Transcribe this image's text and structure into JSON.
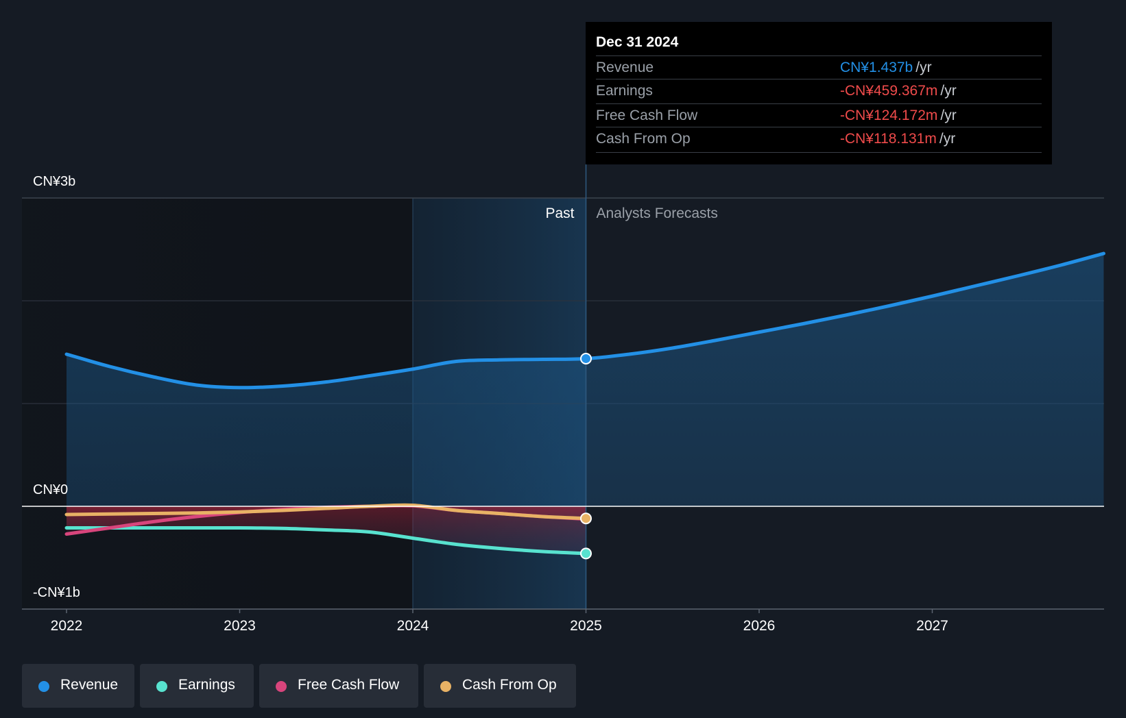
{
  "chart_data": {
    "type": "line",
    "ylim": [
      -1.0,
      3.0
    ],
    "y_ticks": [
      {
        "value": 3,
        "label": "CN¥3b"
      },
      {
        "value": 0,
        "label": "CN¥0"
      },
      {
        "value": -1,
        "label": "-CN¥1b"
      }
    ],
    "x_ticks": [
      "2022",
      "2023",
      "2024",
      "2025",
      "2026",
      "2027"
    ],
    "x_range": [
      2021.75,
      2027.99
    ],
    "past_label": "Past",
    "forecast_label": "Analysts Forecasts",
    "divider_x": 2025.0,
    "highlight_start_x": 2024.0,
    "grid": true,
    "series": [
      {
        "name": "Revenue",
        "color": "#2390e6",
        "fill": true,
        "x": [
          2022.0,
          2022.25,
          2022.5,
          2022.75,
          2023.0,
          2023.25,
          2023.5,
          2023.75,
          2024.0,
          2024.25,
          2024.5,
          2024.75,
          2025.0,
          2025.25,
          2025.5,
          2025.75,
          2026.0,
          2026.25,
          2026.5,
          2026.75,
          2027.0,
          2027.25,
          2027.5,
          2027.75,
          2027.99
        ],
        "y": [
          1.48,
          1.36,
          1.26,
          1.18,
          1.155,
          1.17,
          1.21,
          1.27,
          1.335,
          1.41,
          1.425,
          1.43,
          1.437,
          1.48,
          1.54,
          1.615,
          1.695,
          1.775,
          1.86,
          1.95,
          2.045,
          2.145,
          2.245,
          2.35,
          2.46
        ]
      },
      {
        "name": "Earnings",
        "color": "#58e2cf",
        "fill": true,
        "x": [
          2022.0,
          2022.25,
          2022.5,
          2022.75,
          2023.0,
          2023.25,
          2023.5,
          2023.75,
          2024.0,
          2024.25,
          2024.5,
          2024.75,
          2025.0
        ],
        "y": [
          -0.21,
          -0.21,
          -0.21,
          -0.21,
          -0.21,
          -0.215,
          -0.23,
          -0.25,
          -0.31,
          -0.37,
          -0.41,
          -0.44,
          -0.459
        ]
      },
      {
        "name": "Free Cash Flow",
        "color": "#d8457c",
        "fill": true,
        "x": [
          2022.0,
          2022.25,
          2022.5,
          2022.75,
          2023.0,
          2023.25,
          2023.5,
          2023.75,
          2024.0,
          2024.25,
          2024.5,
          2024.75,
          2025.0
        ],
        "y": [
          -0.27,
          -0.21,
          -0.15,
          -0.1,
          -0.06,
          -0.03,
          -0.01,
          0.0,
          0.005,
          -0.04,
          -0.07,
          -0.1,
          -0.124
        ]
      },
      {
        "name": "Cash From Op",
        "color": "#e8b265",
        "fill": false,
        "x": [
          2022.0,
          2022.25,
          2022.5,
          2022.75,
          2023.0,
          2023.25,
          2023.5,
          2023.75,
          2024.0,
          2024.25,
          2024.5,
          2024.75,
          2025.0
        ],
        "y": [
          -0.08,
          -0.075,
          -0.07,
          -0.065,
          -0.055,
          -0.04,
          -0.02,
          0.0,
          0.01,
          -0.04,
          -0.07,
          -0.1,
          -0.118
        ]
      }
    ]
  },
  "tooltip": {
    "date": "Dec 31 2024",
    "rows": [
      {
        "name": "Revenue",
        "value": "CN¥1.437b",
        "unit": "/yr",
        "color": "#2390e6"
      },
      {
        "name": "Earnings",
        "value": "-CN¥459.367m",
        "unit": "/yr",
        "color": "#ef4b4b"
      },
      {
        "name": "Free Cash Flow",
        "value": "-CN¥124.172m",
        "unit": "/yr",
        "color": "#ef4b4b"
      },
      {
        "name": "Cash From Op",
        "value": "-CN¥118.131m",
        "unit": "/yr",
        "color": "#ef4b4b"
      }
    ]
  },
  "legend": [
    {
      "label": "Revenue",
      "color": "#2390e6"
    },
    {
      "label": "Earnings",
      "color": "#58e2cf"
    },
    {
      "label": "Free Cash Flow",
      "color": "#d8457c"
    },
    {
      "label": "Cash From Op",
      "color": "#e8b265"
    }
  ]
}
